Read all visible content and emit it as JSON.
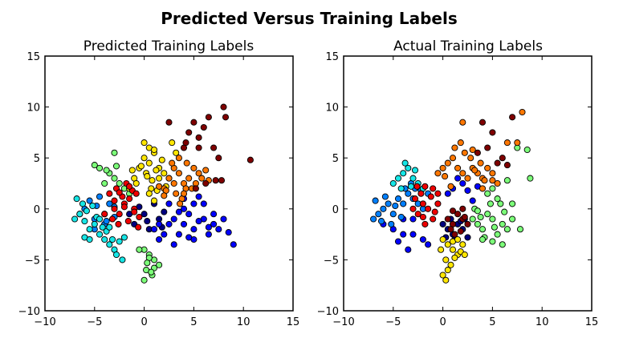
{
  "figure": {
    "title": "Predicted Versus Training Labels"
  },
  "colors": {
    "c0": "#00007f",
    "c1": "#0000ff",
    "c2": "#007fff",
    "c3": "#16e6e6",
    "c4": "#7cff79",
    "c5": "#ffe600",
    "c6": "#ff7700",
    "c7": "#ee0000",
    "c8": "#7f0000"
  },
  "chart_data": [
    {
      "type": "scatter",
      "title": "Predicted Training Labels",
      "xlim": [
        -10,
        15
      ],
      "ylim": [
        -10,
        15
      ],
      "xticks": [
        "−10",
        "−5",
        "0",
        "5",
        "10",
        "15"
      ],
      "yticks": [
        "−10",
        "−5",
        "0",
        "5",
        "10",
        "15"
      ],
      "grid": false,
      "marker": "circle",
      "clusters": [
        {
          "color": "c0",
          "x": [
            -1.5,
            0,
            1.5,
            -1,
            0.5,
            2,
            1,
            -0.5,
            1.8,
            0.3
          ],
          "y": [
            -0.5,
            -0.5,
            -1,
            -1.5,
            -2,
            -0.3,
            0.5,
            0.2,
            -1.8,
            -1.2
          ]
        },
        {
          "color": "c1",
          "x": [
            3,
            4,
            5,
            6,
            7,
            7.5,
            8,
            4.5,
            5.5,
            3.5,
            2.5,
            6.5,
            4,
            5,
            8.5,
            9,
            1.5,
            2,
            3,
            4,
            5.5,
            6,
            7,
            5,
            1,
            2.5,
            3.5,
            4.5,
            6.5,
            1.5
          ],
          "y": [
            -1,
            -1.5,
            -2,
            -1,
            -1.5,
            -2,
            -1,
            -0.5,
            -1.2,
            -2.5,
            -1.5,
            -2.5,
            0,
            0.5,
            -2.3,
            -3.5,
            -3,
            -2.5,
            -3.5,
            1,
            1.2,
            0.5,
            -0.5,
            -3,
            -2,
            0.5,
            -0.3,
            -2.8,
            -1.8,
            -1.5
          ]
        },
        {
          "color": "c2",
          "x": [
            -6,
            -5,
            -4,
            -3,
            -5.5,
            -4.5,
            -3.5,
            -6.5,
            -5,
            -4,
            -3,
            -4.8,
            -3.8
          ],
          "y": [
            0,
            -1,
            -0.5,
            0.2,
            0.8,
            1.2,
            0.5,
            -0.5,
            -2,
            -1.5,
            -0.8,
            0.3,
            -1.2
          ]
        },
        {
          "color": "c3",
          "x": [
            -7,
            -6.5,
            -6,
            -5.5,
            -5,
            -4.5,
            -4,
            -3.5,
            -3,
            -2.5,
            -2,
            -6.8,
            -6.2,
            -5.8,
            -5.2,
            -4.8,
            -4.2,
            -3.8,
            -3.2,
            -2.8,
            -2.2,
            -6,
            -5.5,
            -4.5,
            -3.5
          ],
          "y": [
            -1,
            -0.5,
            -1.2,
            -2,
            -1.5,
            -2.5,
            -3,
            -3.5,
            -4,
            -3.2,
            -2.8,
            1,
            0.5,
            -0.2,
            0.3,
            -0.8,
            -1.8,
            -2.2,
            -3,
            -4.5,
            -5,
            -2.8,
            -3,
            -1,
            -1.8
          ]
        },
        {
          "color": "c4",
          "x": [
            -5,
            -4.5,
            -3.5,
            -3,
            -2.5,
            -2,
            -4,
            -3,
            0,
            0.5,
            1,
            1.5,
            0.2,
            0.8,
            0,
            0.5,
            1,
            -0.5,
            0.3,
            0.7,
            -3.8,
            -2.8,
            -1.5
          ],
          "y": [
            4.3,
            4,
            3.5,
            3,
            2.5,
            2,
            2.5,
            5.5,
            -4,
            -4.5,
            -5,
            -5.5,
            -6,
            -6.5,
            -7,
            -4.8,
            -5.8,
            -4,
            -5.3,
            -6.2,
            3.8,
            4.2,
            1.5
          ]
        },
        {
          "color": "c5",
          "x": [
            -1,
            -0.5,
            0,
            0.5,
            1,
            1.5,
            2,
            2.5,
            -1.5,
            -0.8,
            0.2,
            0.8,
            1.2,
            1.8,
            2.2,
            0,
            0.5,
            1,
            1.5,
            -0.3,
            0.7,
            1.3,
            2.8,
            3.2,
            0.5,
            1,
            -1.2,
            0.3
          ],
          "y": [
            3,
            4,
            5,
            4.5,
            5.5,
            4,
            3.5,
            3,
            2,
            2.5,
            3.5,
            2.8,
            3.8,
            4.8,
            2.2,
            6.5,
            6,
            5.8,
            3,
            4.2,
            2,
            1.8,
            6.5,
            5.5,
            1.5,
            0.8,
            3.8,
            3.2
          ]
        },
        {
          "color": "c6",
          "x": [
            2,
            2.5,
            3,
            3.5,
            4,
            4.5,
            5,
            5.5,
            3.2,
            3.8,
            4.2,
            2.8,
            3.5,
            4.8,
            5.2,
            2.2,
            3,
            4,
            1.5,
            2,
            5.8,
            6.2,
            6.5,
            4.3,
            3.6
          ],
          "y": [
            2,
            3,
            4,
            3.5,
            2.5,
            3,
            4,
            3.5,
            1.5,
            1,
            2,
            4.5,
            5,
            2,
            2.5,
            1.8,
            2.5,
            1.5,
            2.2,
            1.3,
            3,
            3.8,
            2.8,
            4.5,
            0.5
          ]
        },
        {
          "color": "c7",
          "x": [
            -3,
            -2.5,
            -2,
            -1.5,
            -1,
            -0.5,
            -3.5,
            -2.8,
            -2.2,
            -1.8,
            -1.2,
            -0.8,
            -4,
            -3.2,
            -2.6,
            -1.6,
            -0.6,
            -2,
            -1,
            -3,
            -2.5,
            -1.5
          ],
          "y": [
            0,
            -0.5,
            0.5,
            1,
            0,
            -0.8,
            1.5,
            2,
            1.2,
            2.5,
            1.8,
            1.5,
            -0.5,
            -1,
            -1.5,
            -1.2,
            -1.8,
            0.2,
            -0.3,
            0.8,
            1.6,
            2.2
          ]
        },
        {
          "color": "c8",
          "x": [
            4,
            4.5,
            5,
            5.5,
            6,
            6.5,
            7,
            7.5,
            8,
            8.2,
            2.5,
            5.5,
            4.2,
            7.2,
            7.8,
            10.7,
            6.2,
            5.2
          ],
          "y": [
            6,
            7.5,
            8.5,
            7,
            8,
            9,
            6,
            5,
            10,
            9,
            8.5,
            6,
            6.5,
            2.8,
            2.8,
            4.8,
            2.5,
            2
          ]
        }
      ]
    },
    {
      "type": "scatter",
      "title": "Actual Training Labels",
      "xlim": [
        -10,
        15
      ],
      "ylim": [
        -10,
        15
      ],
      "xticks": [
        "−10",
        "−5",
        "0",
        "5",
        "10",
        "15"
      ],
      "yticks": [
        "−10",
        "−5",
        "0",
        "5",
        "10",
        "15"
      ],
      "grid": false,
      "marker": "circle",
      "clusters": [
        {
          "color": "c0",
          "x": [
            0,
            0.5,
            1,
            1.5,
            2,
            2.5,
            1.2,
            0.8,
            1.8,
            0.3,
            2.2
          ],
          "y": [
            -1.5,
            -2,
            -2.5,
            -1.5,
            -2,
            -2.8,
            -3,
            -1,
            -1.2,
            -2.8,
            -1
          ]
        },
        {
          "color": "c1",
          "x": [
            -6,
            -5,
            -4,
            -3,
            -2,
            -1.5,
            -4.5,
            -3.5,
            0.5,
            1,
            1.5,
            2,
            2.5,
            3,
            3.5,
            -4,
            -3
          ],
          "y": [
            -1.5,
            -2,
            -1,
            -2.5,
            -3,
            -3.5,
            -3.2,
            -4,
            1.5,
            2,
            3,
            2.5,
            1.8,
            0.8,
            2.2,
            -2.5,
            -1
          ]
        },
        {
          "color": "c2",
          "x": [
            -7,
            -6.5,
            -6,
            -5.5,
            -5,
            -4.5,
            -4,
            -3.5,
            -3,
            -2.5,
            -2,
            -1.5,
            -6.8,
            -6.2,
            -5.8,
            -5.2,
            -4.8,
            -4.2,
            -3.8,
            -3.2,
            -2.8,
            -2.2
          ],
          "y": [
            -1,
            -0.5,
            0,
            0.5,
            -0.5,
            1,
            0.5,
            1.5,
            1,
            0.5,
            0,
            1.5,
            0.8,
            -1.2,
            1.2,
            -1.5,
            0.3,
            -0.8,
            2,
            2.5,
            2,
            1.8
          ]
        },
        {
          "color": "c3",
          "x": [
            -5,
            -4.5,
            -4,
            -3.5,
            -3,
            -2.5,
            -2,
            -3.8,
            -3.2,
            -4.2,
            -2.8
          ],
          "y": [
            2.5,
            3,
            3.5,
            4,
            3,
            2.5,
            2,
            4.5,
            2.2,
            2,
            3.8
          ]
        },
        {
          "color": "c4",
          "x": [
            3,
            3.5,
            4,
            4.5,
            5,
            5.5,
            6,
            6.5,
            7,
            3.2,
            3.8,
            4.2,
            4.8,
            5.2,
            5.8,
            6.2,
            4.5,
            5,
            6.5,
            7.5,
            8.5,
            8.8,
            6,
            7,
            4,
            5,
            3.5,
            7.8,
            5.5
          ],
          "y": [
            -1,
            -1.5,
            -2,
            -0.5,
            -1,
            -2.5,
            -1.5,
            -2,
            -1,
            0,
            -0.8,
            -2.8,
            0.5,
            -1.8,
            0.5,
            -0.3,
            1.5,
            2,
            2.8,
            6,
            5.8,
            3,
            -3.5,
            0.5,
            -3,
            -3.2,
            -0.2,
            -2,
            1
          ]
        },
        {
          "color": "c5",
          "x": [
            0,
            0.5,
            1,
            1.5,
            2,
            0.3,
            0.8,
            1.2,
            1.8,
            -0.2,
            0.5,
            1,
            0,
            0.3,
            2.2,
            1.5
          ],
          "y": [
            -3,
            -3.5,
            -4,
            -4.5,
            -3.5,
            -5,
            -5.5,
            -4.8,
            -4.2,
            -4,
            -6,
            -3.2,
            -6.5,
            -7,
            -4.5,
            -3
          ]
        },
        {
          "color": "c6",
          "x": [
            -0.5,
            0,
            0.5,
            1,
            1.5,
            2,
            2.5,
            3,
            3.5,
            4,
            4.5,
            5,
            5.5,
            1.2,
            1.8,
            2.2,
            2.8,
            3.2,
            3.8,
            4.2,
            0.2,
            0.8,
            6.5,
            7.5,
            8,
            2,
            3,
            4,
            5
          ],
          "y": [
            3.5,
            4,
            4.5,
            5,
            4,
            3.5,
            3,
            4,
            3.5,
            3,
            4,
            3.5,
            2.5,
            6,
            6.5,
            5.5,
            5,
            3.8,
            4.5,
            2.8,
            3.2,
            2.2,
            6.5,
            6.5,
            9.5,
            8.5,
            5.8,
            2,
            2.8
          ]
        },
        {
          "color": "c7",
          "x": [
            -3,
            -2.5,
            -2,
            -1.5,
            -1,
            -0.5,
            -2.8,
            -2.2,
            -1.8,
            -1.2,
            -0.8,
            -2,
            -1,
            -0.5,
            -1.8,
            -2.6
          ],
          "y": [
            0,
            -0.5,
            0.5,
            0,
            -1,
            0.5,
            1,
            1.5,
            -1.5,
            1.2,
            -0.3,
            -0.8,
            2,
            1.5,
            2.2,
            2.2
          ]
        },
        {
          "color": "c8",
          "x": [
            0.5,
            1,
            1.5,
            2,
            2.5,
            0.8,
            1.2,
            1.8,
            2.2,
            1,
            4,
            4.5,
            5,
            6,
            7,
            5.5,
            6.5,
            3.5,
            2
          ],
          "y": [
            -1,
            -1.5,
            -0.5,
            -1,
            -1.5,
            -2,
            -2.5,
            -2.2,
            -0.8,
            -0.2,
            8.5,
            6,
            7.5,
            5,
            9,
            4.5,
            4.3,
            5.5,
            0
          ]
        }
      ]
    }
  ]
}
